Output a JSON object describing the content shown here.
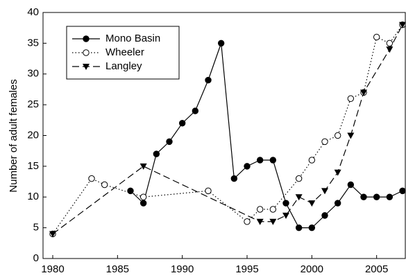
{
  "chart_data": {
    "type": "line",
    "y_label": "Number of adult females",
    "xlim": [
      1980,
      2007
    ],
    "xticks": [
      1980,
      1985,
      1990,
      1995,
      2000,
      2005
    ],
    "ylim": [
      0,
      40
    ],
    "yticks": [
      0,
      5,
      10,
      15,
      20,
      25,
      30,
      35,
      40
    ],
    "legend": "upper-left",
    "series": [
      {
        "name": "Mono Basin",
        "color": "#000000",
        "line": "solid",
        "marker": "filled-circle",
        "x": [
          1986,
          1987,
          1988,
          1989,
          1990,
          1991,
          1992,
          1993,
          1994,
          1995,
          1996,
          1997,
          1998,
          1999,
          2000,
          2001,
          2002,
          2003,
          2004,
          2005,
          2006,
          2007
        ],
        "values": [
          11,
          9,
          17,
          19,
          22,
          24,
          29,
          35,
          13,
          15,
          16,
          16,
          9,
          5,
          5,
          7,
          9,
          12,
          10,
          10,
          10,
          11
        ]
      },
      {
        "name": "Wheeler",
        "color": "#000000",
        "line": "dotted",
        "marker": "open-circle",
        "x": [
          1980,
          1983,
          1984,
          1987,
          1992,
          1995,
          1996,
          1997,
          1999,
          2000,
          2001,
          2002,
          2003,
          2004,
          2005,
          2006,
          2007
        ],
        "values": [
          4,
          13,
          12,
          10,
          11,
          6,
          8,
          8,
          13,
          16,
          19,
          20,
          26,
          27,
          36,
          35,
          38
        ]
      },
      {
        "name": "Langley",
        "color": "#000000",
        "line": "dashed",
        "marker": "triangle-down",
        "x": [
          1980,
          1987,
          1996,
          1997,
          1998,
          1999,
          2000,
          2001,
          2002,
          2003,
          2004,
          2006,
          2007
        ],
        "values": [
          4,
          15,
          6,
          6,
          7,
          10,
          9,
          11,
          14,
          20,
          27,
          34,
          38
        ]
      }
    ]
  }
}
